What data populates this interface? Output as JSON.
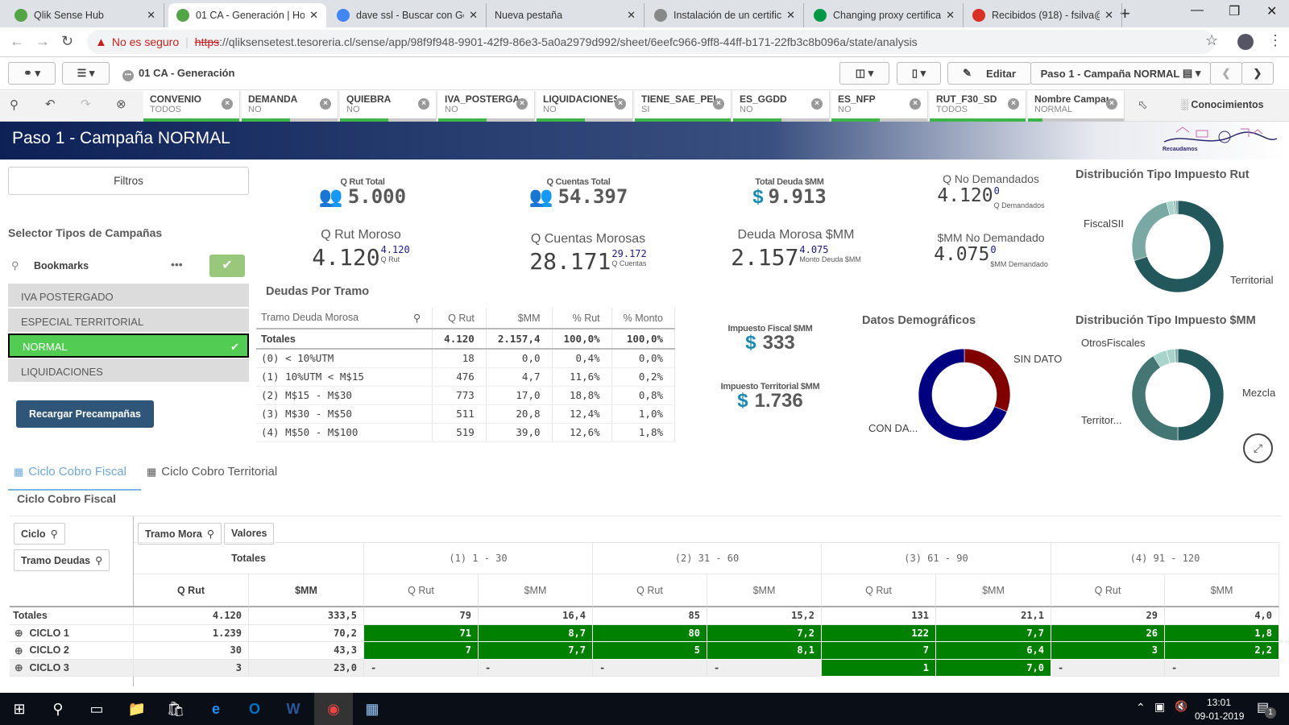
{
  "browser": {
    "tabs": [
      {
        "title": "Qlik Sense Hub",
        "icon": "qlik-sense-icon",
        "color": "#52a447"
      },
      {
        "title": "01 CA - Generación | Hoja",
        "icon": "qlik-sense-icon",
        "color": "#52a447"
      },
      {
        "title": "dave ssl - Buscar con Google",
        "icon": "google-icon",
        "color": "#4285f4"
      },
      {
        "title": "Nueva pestaña",
        "icon": "",
        "color": ""
      },
      {
        "title": "Instalación de un certificado",
        "icon": "document-icon",
        "color": "#888888"
      },
      {
        "title": "Changing proxy certificate",
        "icon": "qlik-icon",
        "color": "#009845"
      },
      {
        "title": "Recibidos (918) - fsilva@",
        "icon": "gmail-icon",
        "color": "#d93025"
      }
    ],
    "active_tab": 1,
    "new_tab": "+",
    "security_warning": "No es seguro",
    "url_scheme": "https",
    "url_rest": "://qliksensetest.tesoreria.cl/sense/app/98f9f948-9901-42f9-86e3-5a0a2979d992/sheet/6eefc966-9ff8-44ff-b171-22fb3c8b096a/state/analysis"
  },
  "toolbar": {
    "app_name": "01 CA - Generación",
    "edit_label": "Editar",
    "sheet_selector": "Paso 1 - Campaña NORMAL",
    "insights_label": "Conocimientos"
  },
  "selections": [
    {
      "field": "CONVENIO",
      "value": "TODOS",
      "selected_fraction": 1.0
    },
    {
      "field": "DEMANDA",
      "value": "NO",
      "selected_fraction": 0.5
    },
    {
      "field": "QUIEBRA",
      "value": "NO",
      "selected_fraction": 0.5
    },
    {
      "field": "IVA_POSTERGA...",
      "value": "NO",
      "selected_fraction": 0.5
    },
    {
      "field": "LIQUIDACIONES",
      "value": "NO",
      "selected_fraction": 0.5
    },
    {
      "field": "TIENE_SAE_PER...",
      "value": "SI",
      "selected_fraction": 1.0
    },
    {
      "field": "ES_GGDD",
      "value": "NO",
      "selected_fraction": 0.5
    },
    {
      "field": "ES_NFP",
      "value": "NO",
      "selected_fraction": 0.5
    },
    {
      "field": "RUT_F30_SD",
      "value": "TODOS",
      "selected_fraction": 1.0
    },
    {
      "field": "Nombre Campana",
      "value": "NORMAL",
      "selected_fraction": 0.15
    }
  ],
  "sheet": {
    "title": "Paso 1 - Campaña NORMAL",
    "logo_text": "Recaudamos equidad y desarrollo para Chile"
  },
  "left_panel": {
    "filters_button": "Filtros",
    "selector_title": "Selector Tipos de Campañas",
    "bookmarks_label": "Bookmarks",
    "items": [
      {
        "label": "IVA POSTERGADO",
        "selected": false
      },
      {
        "label": "ESPECIAL TERRITORIAL",
        "selected": false
      },
      {
        "label": "NORMAL",
        "selected": true
      },
      {
        "label": "LIQUIDACIONES",
        "selected": false
      }
    ],
    "reload_button": "Recargar Precampañas"
  },
  "kpis_top": [
    {
      "label": "Q Rut Total",
      "value": "5.000",
      "icon": "users-icon"
    },
    {
      "label": "Q Cuentas Total",
      "value": "54.397",
      "icon": "users-icon"
    },
    {
      "label": "Total Deuda $MM",
      "value": "9.913",
      "icon": "$"
    }
  ],
  "kpis_compare": [
    {
      "title": "Q Rut Moroso",
      "value": "4.120",
      "sup": "4.120",
      "sub": "Q Rut"
    },
    {
      "title": "Q Cuentas Morosas",
      "value": "28.171",
      "sup": "29.172",
      "sub": "Q Cuentas"
    },
    {
      "title": "Deuda Morosa $MM",
      "value": "2.157",
      "sup": "4.075",
      "sub": "Monto Deuda $MM"
    },
    {
      "title": "Q No Demandados",
      "value": "4.120",
      "sup": "0",
      "sub": "Q Demandados"
    },
    {
      "title": "$MM No Demandado",
      "value": "4.075",
      "sup": "0",
      "sub": "$MM Demandado"
    }
  ],
  "kpis_tax": [
    {
      "label": "Impuesto Fiscal $MM",
      "value": "333",
      "icon": "$"
    },
    {
      "label": "Impuesto Territorial $MM",
      "value": "1.736",
      "icon": "$"
    }
  ],
  "deudas_table": {
    "title": "Deudas Por Tramo",
    "columns": [
      "Tramo Deuda Morosa",
      "Q Rut",
      "$MM",
      "% Rut",
      "% Monto"
    ],
    "totals": [
      "Totales",
      "4.120",
      "2.157,4",
      "100,0%",
      "100,0%"
    ],
    "rows": [
      [
        "(0) < 10%UTM",
        "18",
        "0,0",
        "0,4%",
        "0,0%"
      ],
      [
        "(1) 10%UTM < M$15",
        "476",
        "4,7",
        "11,6%",
        "0,2%"
      ],
      [
        "(2) M$15 - M$30",
        "773",
        "17,0",
        "18,8%",
        "0,8%"
      ],
      [
        "(3) M$30 - M$50",
        "511",
        "20,8",
        "12,4%",
        "1,0%"
      ],
      [
        "(4) M$50 - M$100",
        "519",
        "39,0",
        "12,6%",
        "1,8%"
      ]
    ]
  },
  "chart_data": [
    {
      "type": "pie",
      "title": "Distribución Tipo Impuesto Rut",
      "donut": true,
      "slices": [
        {
          "label": "Territorial",
          "value": 70,
          "color": "#22575b",
          "show_label": true
        },
        {
          "label": "FiscalSII",
          "value": 26,
          "color": "#7aa8a3",
          "show_label": true
        },
        {
          "label": "",
          "value": 2.5,
          "color": "#a8d4cc",
          "show_label": false
        },
        {
          "label": "",
          "value": 0.8,
          "color": "#8fb5b0",
          "show_label": false
        },
        {
          "label": "",
          "value": 0.7,
          "color": "#6f9c97",
          "show_label": false
        }
      ]
    },
    {
      "type": "pie",
      "title": "Datos Demográficos",
      "donut": true,
      "slices": [
        {
          "label": "SIN DATO",
          "value": 31,
          "color": "#800000",
          "show_label": true
        },
        {
          "label": "CON DA...",
          "value": 69,
          "color": "#000080",
          "show_label": true
        }
      ]
    },
    {
      "type": "pie",
      "title": "Distribución Tipo Impuesto $MM",
      "donut": true,
      "slices": [
        {
          "label": "Mezcla",
          "value": 50,
          "color": "#22575b",
          "show_label": true
        },
        {
          "label": "Territor...",
          "value": 41,
          "color": "#447673",
          "show_label": true
        },
        {
          "label": "OtrosFiscales",
          "value": 5,
          "color": "#a8d4cc",
          "show_label": true
        },
        {
          "label": "",
          "value": 3,
          "color": "#a8d4cc",
          "show_label": false
        },
        {
          "label": "",
          "value": 1,
          "color": "#7aa8a3",
          "show_label": false
        }
      ]
    }
  ],
  "bottom": {
    "tabs": [
      {
        "label": "Ciclo Cobro Fiscal",
        "active": true
      },
      {
        "label": "Ciclo Cobro Territorial",
        "active": false
      }
    ],
    "subtitle": "Ciclo Cobro Fiscal",
    "pivot": {
      "row_dims": [
        "Ciclo",
        "Tramo Deudas"
      ],
      "col_dims": [
        "Tramo Mora",
        "Valores"
      ],
      "groups": [
        "Totales",
        "(1) 1 - 30",
        "(2) 31 - 60",
        "(3) 61 - 90",
        "(4) 91 - 120"
      ],
      "measures": [
        "Q Rut",
        "$MM"
      ],
      "rows": [
        {
          "label": "Totales",
          "expandable": false,
          "cells": [
            "4.120",
            "333,5",
            "79",
            "16,4",
            "85",
            "15,2",
            "131",
            "21,1",
            "29",
            "4,0"
          ],
          "highlight": [
            0,
            0,
            0,
            0,
            0,
            0,
            0,
            0,
            0,
            0
          ]
        },
        {
          "label": "CICLO 1",
          "expandable": true,
          "cells": [
            "1.239",
            "70,2",
            "71",
            "8,7",
            "80",
            "7,2",
            "122",
            "7,7",
            "26",
            "1,8"
          ],
          "highlight": [
            0,
            0,
            1,
            1,
            1,
            1,
            1,
            1,
            1,
            1
          ]
        },
        {
          "label": "CICLO 2",
          "expandable": true,
          "cells": [
            "30",
            "43,3",
            "7",
            "7,7",
            "5",
            "8,1",
            "7",
            "6,4",
            "3",
            "2,2"
          ],
          "highlight": [
            0,
            0,
            1,
            1,
            1,
            1,
            1,
            1,
            1,
            1
          ]
        },
        {
          "label": "CICLO 3",
          "expandable": true,
          "cells": [
            "3",
            "23,0",
            "-",
            "-",
            "-",
            "-",
            "1",
            "7,0",
            "-",
            "-"
          ],
          "highlight": [
            0,
            0,
            0,
            0,
            0,
            0,
            1,
            1,
            0,
            0
          ]
        }
      ],
      "highlight_color": "#008000"
    }
  },
  "taskbar": {
    "time": "13:01",
    "date": "09-01-2019",
    "notifications": "1"
  },
  "colors": {
    "accent_teal": "#1a8bb0",
    "selected_green": "#52cc52",
    "title_navy": "#0d2157",
    "button_blue": "#2f5678"
  }
}
